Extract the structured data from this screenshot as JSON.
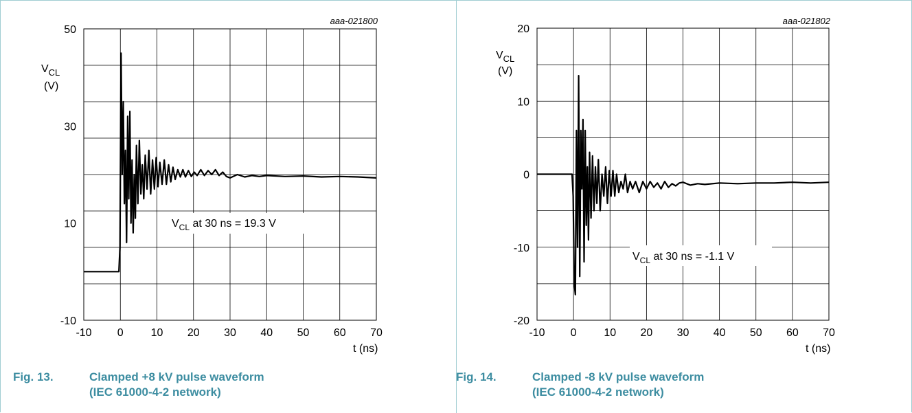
{
  "charts": [
    {
      "id": "fig13",
      "figure_id": "aaa-021800",
      "caption_num": "Fig. 13.",
      "caption_line1": "Clamped +8 kV pulse waveform",
      "caption_line2": "(IEC 61000-4-2 network)",
      "ylabel_main": "V",
      "ylabel_sub": "CL",
      "ylabel_unit": "(V)",
      "xlabel": "t (ns)",
      "annotation_prefix": "V",
      "annotation_sub": "CL",
      "annotation_rest": " at 30 ns = 19.3 V",
      "xticks": [
        "-10",
        "0",
        "10",
        "20",
        "30",
        "40",
        "50",
        "60",
        "70"
      ],
      "yticks": [
        "-10",
        "10",
        "30",
        "50"
      ]
    },
    {
      "id": "fig14",
      "figure_id": "aaa-021802",
      "caption_num": "Fig. 14.",
      "caption_line1": "Clamped -8 kV pulse waveform",
      "caption_line2": "(IEC 61000-4-2 network)",
      "ylabel_main": "V",
      "ylabel_sub": "CL",
      "ylabel_unit": "(V)",
      "xlabel": "t (ns)",
      "annotation_prefix": "V",
      "annotation_sub": "CL",
      "annotation_rest": " at 30 ns = -1.1 V",
      "xticks": [
        "-10",
        "0",
        "10",
        "20",
        "30",
        "40",
        "50",
        "60",
        "70"
      ],
      "yticks": [
        "-20",
        "-10",
        "0",
        "10",
        "20"
      ]
    }
  ],
  "chart_data": [
    {
      "type": "line",
      "xlim": [
        -10,
        70
      ],
      "ylim": [
        -10,
        50
      ],
      "grid": true,
      "series": [
        {
          "x": [
            -10,
            -1,
            -0.4,
            -0.1,
            0.2,
            0.5,
            0.8,
            1.1,
            1.4,
            1.7,
            2.0,
            2.3,
            2.6,
            2.9,
            3.2,
            3.5,
            3.8,
            4.1,
            4.4,
            4.8,
            5.2,
            5.6,
            6.0,
            6.4,
            6.8,
            7.3,
            7.8,
            8.3,
            8.8,
            9.3,
            9.8,
            10.3,
            10.8,
            11.4,
            12.0,
            12.6,
            13.2,
            13.8,
            14.4,
            15.0,
            15.7,
            16.4,
            17.1,
            17.8,
            18.6,
            19.4,
            20.2,
            21.0,
            22.0,
            23.0,
            24.0,
            25.0,
            26.0,
            27.0,
            28.0,
            29.0,
            30.0,
            32.0,
            34.0,
            36.0,
            38.0,
            40.0,
            45.0,
            50.0,
            55.0,
            60.0,
            65.0,
            70.0
          ],
          "y": [
            0,
            0,
            0,
            5,
            45,
            20,
            35,
            14,
            25,
            6,
            32,
            15,
            33,
            10,
            23,
            8,
            20,
            11,
            26,
            14,
            27,
            16,
            22,
            15,
            24,
            17,
            25,
            16,
            23,
            17,
            23.5,
            17.5,
            22.5,
            18,
            23,
            18,
            22,
            18.5,
            21.5,
            19,
            21,
            19.5,
            21,
            19.5,
            20.8,
            19.6,
            20.5,
            19.8,
            21,
            19.8,
            20.8,
            20,
            21,
            19.8,
            20.5,
            19.6,
            19.3,
            20,
            19.5,
            19.8,
            19.6,
            19.8,
            19.6,
            19.7,
            19.5,
            19.6,
            19.5,
            19.3
          ]
        }
      ]
    },
    {
      "type": "line",
      "xlim": [
        -10,
        70
      ],
      "ylim": [
        -20,
        20
      ],
      "grid": true,
      "series": [
        {
          "x": [
            -10,
            -1,
            -0.4,
            -0.1,
            0.2,
            0.5,
            0.8,
            1.1,
            1.4,
            1.7,
            2.0,
            2.3,
            2.6,
            2.9,
            3.2,
            3.5,
            3.8,
            4.1,
            4.4,
            4.8,
            5.2,
            5.6,
            6.0,
            6.4,
            6.8,
            7.3,
            7.8,
            8.3,
            8.8,
            9.3,
            9.8,
            10.3,
            10.8,
            11.3,
            11.8,
            12.4,
            13.0,
            13.6,
            14.2,
            14.8,
            15.5,
            16.2,
            17.0,
            18.0,
            19.0,
            20.0,
            21.0,
            22.0,
            23.0,
            24.0,
            25.0,
            26.0,
            27.0,
            28.0,
            29.0,
            30.0,
            32.0,
            34.0,
            36.0,
            40.0,
            45.0,
            50.0,
            55.0,
            60.0,
            65.0,
            70.0
          ],
          "y": [
            0,
            0,
            0,
            -3,
            -15,
            -16.5,
            6,
            -10,
            13.5,
            -14,
            6,
            -2,
            7.5,
            -12,
            6,
            -7,
            1,
            -9,
            3,
            -6,
            2.5,
            -5,
            1,
            -4,
            2,
            -5,
            0,
            -3,
            1,
            -4,
            0.5,
            -3,
            0.5,
            -3,
            0,
            -2.5,
            -1,
            -2,
            0,
            -2.5,
            -1,
            -2,
            -1,
            -2.5,
            -1,
            -2,
            -1,
            -1.8,
            -1.2,
            -2,
            -1,
            -1.8,
            -1.3,
            -1.6,
            -1.2,
            -1.1,
            -1.5,
            -1.3,
            -1.4,
            -1.2,
            -1.3,
            -1.2,
            -1.2,
            -1.1,
            -1.2,
            -1.1
          ]
        }
      ]
    }
  ]
}
